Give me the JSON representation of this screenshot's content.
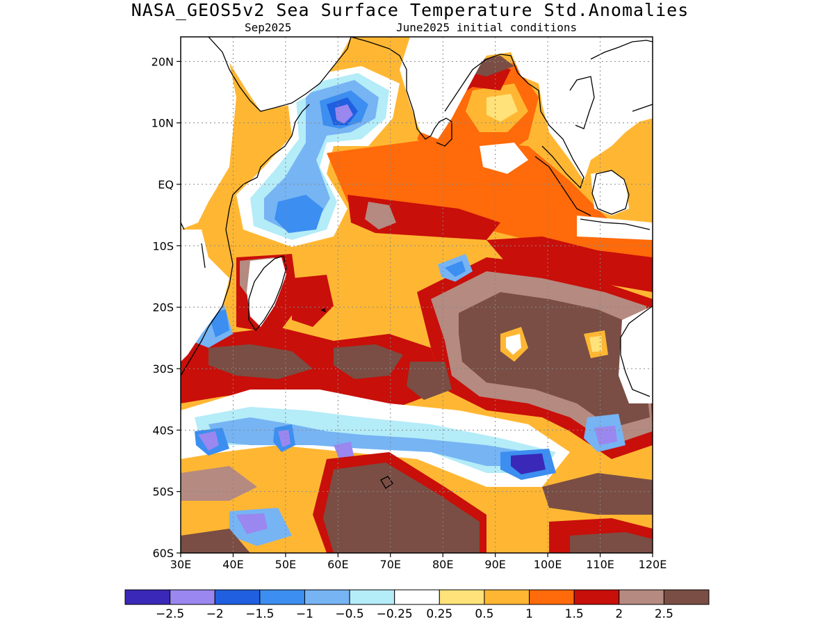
{
  "title": "NASA_GEOS5v2 Sea Surface Temperature Std.Anomalies",
  "subtitle_left": "Sep2025",
  "subtitle_right": "June2025 initial conditions",
  "map": {
    "lon_range": [
      30,
      120
    ],
    "lat_range": [
      -60,
      24
    ],
    "lat_ticks": [
      {
        "value": 20,
        "label": "20N"
      },
      {
        "value": 10,
        "label": "10N"
      },
      {
        "value": 0,
        "label": "EQ"
      },
      {
        "value": -10,
        "label": "10S"
      },
      {
        "value": -20,
        "label": "20S"
      },
      {
        "value": -30,
        "label": "30S"
      },
      {
        "value": -40,
        "label": "40S"
      },
      {
        "value": -50,
        "label": "50S"
      },
      {
        "value": -60,
        "label": "60S"
      }
    ],
    "lon_ticks": [
      {
        "value": 30,
        "label": "30E"
      },
      {
        "value": 40,
        "label": "40E"
      },
      {
        "value": 50,
        "label": "50E"
      },
      {
        "value": 60,
        "label": "60E"
      },
      {
        "value": 70,
        "label": "70E"
      },
      {
        "value": 80,
        "label": "80E"
      },
      {
        "value": 90,
        "label": "90E"
      },
      {
        "value": 100,
        "label": "100E"
      },
      {
        "value": 110,
        "label": "110E"
      },
      {
        "value": 120,
        "label": "120E"
      }
    ],
    "grid": "dotted"
  },
  "colorbar": {
    "colors": [
      "#3a28b8",
      "#9a87f0",
      "#1f5fe0",
      "#3c8ef0",
      "#76b4f4",
      "#b4ecf8",
      "#ffffff",
      "#ffe27a",
      "#ffb733",
      "#ff6a0a",
      "#c80f0a",
      "#b58a80",
      "#7a4e44"
    ],
    "labels": [
      "−2.5",
      "−2",
      "−1.5",
      "−1",
      "−0.5",
      "−0.25",
      "0.25",
      "0.5",
      "1",
      "1.5",
      "2",
      "2.5"
    ]
  }
}
